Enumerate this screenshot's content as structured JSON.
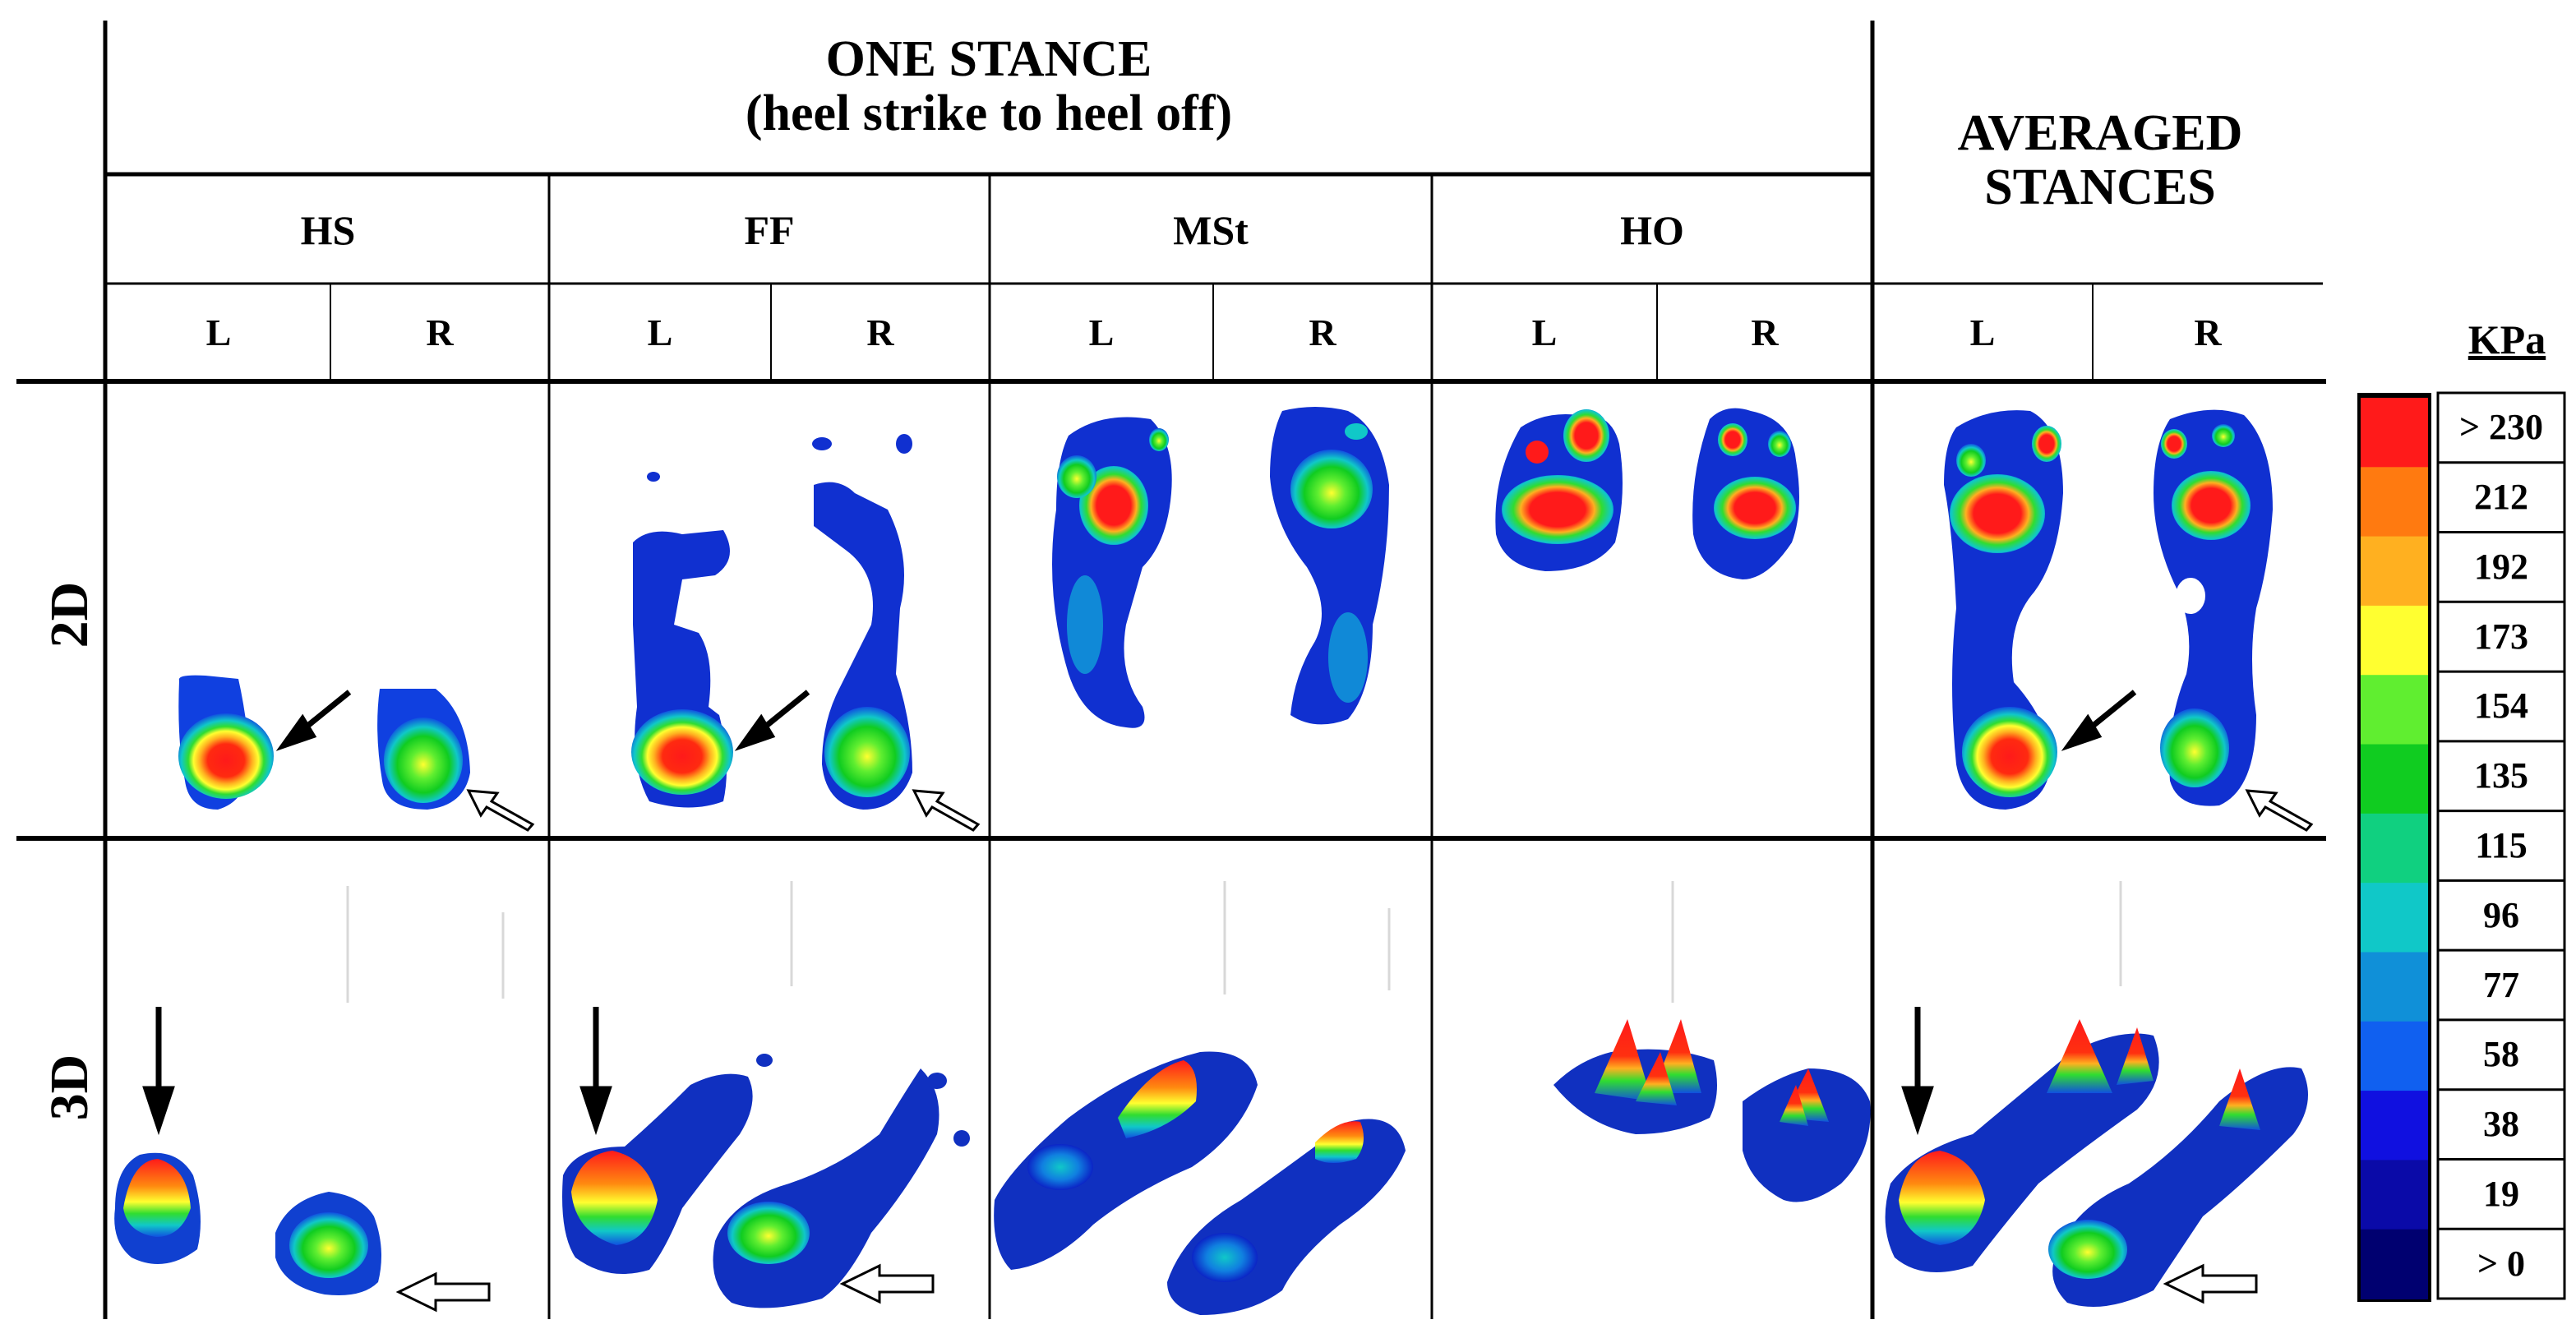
{
  "header": {
    "title_line1": "ONE STANCE",
    "title_line2": "(heel strike to heel off)",
    "averaged_line1": "AVERAGED",
    "averaged_line2": "STANCES"
  },
  "phases": [
    "HS",
    "FF",
    "MSt",
    "HO"
  ],
  "sides": [
    "L",
    "R",
    "L",
    "R",
    "L",
    "R",
    "L",
    "R",
    "L",
    "R"
  ],
  "rows": [
    "2D",
    "3D"
  ],
  "scale": {
    "unit": "KPa",
    "labels": [
      "> 230",
      "212",
      "192",
      "173",
      "154",
      "135",
      "115",
      "96",
      "77",
      "58",
      "38",
      "19",
      "> 0"
    ],
    "colors": [
      "#ff1a1a",
      "#ff7a10",
      "#ffb020",
      "#ffff30",
      "#60ee30",
      "#10cc20",
      "#10d080",
      "#10c8c8",
      "#1090d8",
      "#1060f0",
      "#1010e0",
      "#0a0aa8",
      "#000070"
    ]
  },
  "colors": {
    "high": "#ff1a1a",
    "orange": "#ff8a10",
    "yellow": "#ffff30",
    "green": "#30dd30",
    "cyan": "#10c8c8",
    "blue": "#1050e0",
    "navy": "#000090"
  }
}
